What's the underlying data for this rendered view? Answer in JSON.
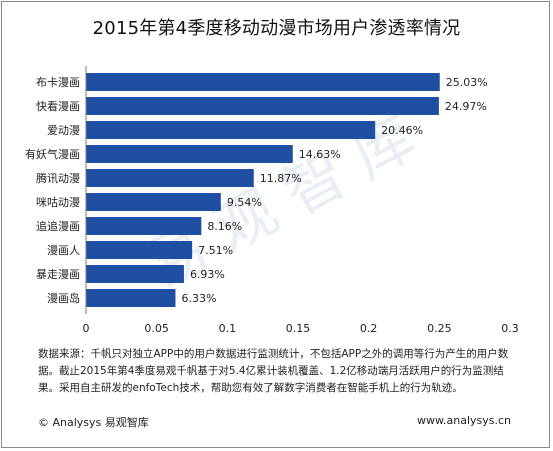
{
  "title": "2015年第4季度移动动漫市场用户渗透率情况",
  "note": "数据来源：千帆只对独立APP中的用户数据进行监测统计，不包括APP之外的调用等行为产生的用户数据。截止2015年第4季度易观千帆基于对5.4亿累计装机覆盖、1.2亿移动端月活跃用户的行为监测结果。采用自主研发的enfoTech技术，帮助您有效了解数字消费者在智能手机上的行为轨迹。",
  "footer": {
    "left": "© Analysys 易观智库",
    "right": "www.analysys.cn"
  },
  "watermark": "易观智库",
  "colors": {
    "bar": "#1f4fa3",
    "axis": "#777777"
  },
  "chart_data": {
    "type": "bar",
    "orientation": "horizontal",
    "categories": [
      "布卡漫画",
      "快看漫画",
      "爱动漫",
      "有妖气漫画",
      "腾讯动漫",
      "咪咕动漫",
      "追追漫画",
      "漫画人",
      "暴走漫画",
      "漫画岛"
    ],
    "values": [
      0.2503,
      0.2497,
      0.2046,
      0.1463,
      0.1187,
      0.0954,
      0.0816,
      0.0751,
      0.0693,
      0.0633
    ],
    "labels": [
      "25.03%",
      "24.97%",
      "20.46%",
      "14.63%",
      "11.87%",
      "9.54%",
      "8.16%",
      "7.51%",
      "6.93%",
      "6.33%"
    ],
    "xlim": [
      0,
      0.3
    ],
    "xticks": [
      "0",
      "0.05",
      "0.1",
      "0.15",
      "0.2",
      "0.25",
      "0.3"
    ],
    "xtick_values": [
      0,
      0.05,
      0.1,
      0.15,
      0.2,
      0.25,
      0.3
    ]
  }
}
